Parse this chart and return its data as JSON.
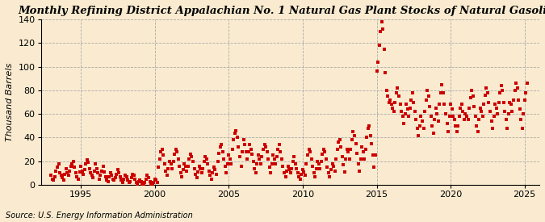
{
  "title": "Monthly Refining District Appalachian No. 1 Natural Gas Plant Stocks of Natural Gasoline",
  "ylabel": "Thousand Barrels",
  "source": "Source: U.S. Energy Information Administration",
  "xlim": [
    1992.3,
    2026.0
  ],
  "ylim": [
    0,
    140
  ],
  "yticks": [
    0,
    20,
    40,
    60,
    80,
    100,
    120,
    140
  ],
  "xticks": [
    1995,
    2000,
    2005,
    2010,
    2015,
    2020,
    2025
  ],
  "marker_color": "#cc0000",
  "marker": "s",
  "marker_size": 6,
  "background_color": "#faebd0",
  "grid_color": "#aaaaaa",
  "title_fontsize": 9.5,
  "label_fontsize": 8,
  "tick_fontsize": 8,
  "source_fontsize": 7,
  "data_x": [
    1993.0,
    1993.083,
    1993.167,
    1993.25,
    1993.333,
    1993.417,
    1993.5,
    1993.583,
    1993.667,
    1993.75,
    1993.833,
    1993.917,
    1994.0,
    1994.083,
    1994.167,
    1994.25,
    1994.333,
    1994.417,
    1994.5,
    1994.583,
    1994.667,
    1994.75,
    1994.833,
    1994.917,
    1995.0,
    1995.083,
    1995.167,
    1995.25,
    1995.333,
    1995.417,
    1995.5,
    1995.583,
    1995.667,
    1995.75,
    1995.833,
    1995.917,
    1996.0,
    1996.083,
    1996.167,
    1996.25,
    1996.333,
    1996.417,
    1996.5,
    1996.583,
    1996.667,
    1996.75,
    1996.833,
    1996.917,
    1997.0,
    1997.083,
    1997.167,
    1997.25,
    1997.333,
    1997.417,
    1997.5,
    1997.583,
    1997.667,
    1997.75,
    1997.833,
    1997.917,
    1998.0,
    1998.083,
    1998.167,
    1998.25,
    1998.333,
    1998.417,
    1998.5,
    1998.583,
    1998.667,
    1998.75,
    1998.833,
    1998.917,
    1999.0,
    1999.083,
    1999.167,
    1999.25,
    1999.333,
    1999.417,
    1999.5,
    1999.583,
    1999.667,
    1999.75,
    1999.833,
    1999.917,
    2000.0,
    2000.083,
    2000.167,
    2000.25,
    2000.333,
    2000.417,
    2000.5,
    2000.583,
    2000.667,
    2000.75,
    2000.833,
    2000.917,
    2001.0,
    2001.083,
    2001.167,
    2001.25,
    2001.333,
    2001.417,
    2001.5,
    2001.583,
    2001.667,
    2001.75,
    2001.833,
    2001.917,
    2002.0,
    2002.083,
    2002.167,
    2002.25,
    2002.333,
    2002.417,
    2002.5,
    2002.583,
    2002.667,
    2002.75,
    2002.833,
    2002.917,
    2003.0,
    2003.083,
    2003.167,
    2003.25,
    2003.333,
    2003.417,
    2003.5,
    2003.583,
    2003.667,
    2003.75,
    2003.833,
    2003.917,
    2004.0,
    2004.083,
    2004.167,
    2004.25,
    2004.333,
    2004.417,
    2004.5,
    2004.583,
    2004.667,
    2004.75,
    2004.833,
    2004.917,
    2005.0,
    2005.083,
    2005.167,
    2005.25,
    2005.333,
    2005.417,
    2005.5,
    2005.583,
    2005.667,
    2005.75,
    2005.833,
    2005.917,
    2006.0,
    2006.083,
    2006.167,
    2006.25,
    2006.333,
    2006.417,
    2006.5,
    2006.583,
    2006.667,
    2006.75,
    2006.833,
    2006.917,
    2007.0,
    2007.083,
    2007.167,
    2007.25,
    2007.333,
    2007.417,
    2007.5,
    2007.583,
    2007.667,
    2007.75,
    2007.833,
    2007.917,
    2008.0,
    2008.083,
    2008.167,
    2008.25,
    2008.333,
    2008.417,
    2008.5,
    2008.583,
    2008.667,
    2008.75,
    2008.833,
    2008.917,
    2009.0,
    2009.083,
    2009.167,
    2009.25,
    2009.333,
    2009.417,
    2009.5,
    2009.583,
    2009.667,
    2009.75,
    2009.833,
    2009.917,
    2010.0,
    2010.083,
    2010.167,
    2010.25,
    2010.333,
    2010.417,
    2010.5,
    2010.583,
    2010.667,
    2010.75,
    2010.833,
    2010.917,
    2011.0,
    2011.083,
    2011.167,
    2011.25,
    2011.333,
    2011.417,
    2011.5,
    2011.583,
    2011.667,
    2011.75,
    2011.833,
    2011.917,
    2012.0,
    2012.083,
    2012.167,
    2012.25,
    2012.333,
    2012.417,
    2012.5,
    2012.583,
    2012.667,
    2012.75,
    2012.833,
    2012.917,
    2013.0,
    2013.083,
    2013.167,
    2013.25,
    2013.333,
    2013.417,
    2013.5,
    2013.583,
    2013.667,
    2013.75,
    2013.833,
    2013.917,
    2014.0,
    2014.083,
    2014.167,
    2014.25,
    2014.333,
    2014.417,
    2014.5,
    2014.583,
    2014.667,
    2014.75,
    2014.833,
    2014.917,
    2015.0,
    2015.083,
    2015.167,
    2015.25,
    2015.333,
    2015.417,
    2015.5,
    2015.583,
    2015.667,
    2015.75,
    2015.833,
    2015.917,
    2016.0,
    2016.083,
    2016.167,
    2016.25,
    2016.333,
    2016.417,
    2016.5,
    2016.583,
    2016.667,
    2016.75,
    2016.833,
    2016.917,
    2017.0,
    2017.083,
    2017.167,
    2017.25,
    2017.333,
    2017.417,
    2017.5,
    2017.583,
    2017.667,
    2017.75,
    2017.833,
    2017.917,
    2018.0,
    2018.083,
    2018.167,
    2018.25,
    2018.333,
    2018.417,
    2018.5,
    2018.583,
    2018.667,
    2018.75,
    2018.833,
    2018.917,
    2019.0,
    2019.083,
    2019.167,
    2019.25,
    2019.333,
    2019.417,
    2019.5,
    2019.583,
    2019.667,
    2019.75,
    2019.833,
    2019.917,
    2020.0,
    2020.083,
    2020.167,
    2020.25,
    2020.333,
    2020.417,
    2020.5,
    2020.583,
    2020.667,
    2020.75,
    2020.833,
    2020.917,
    2021.0,
    2021.083,
    2021.167,
    2021.25,
    2021.333,
    2021.417,
    2021.5,
    2021.583,
    2021.667,
    2021.75,
    2021.833,
    2021.917,
    2022.0,
    2022.083,
    2022.167,
    2022.25,
    2022.333,
    2022.417,
    2022.5,
    2022.583,
    2022.667,
    2022.75,
    2022.833,
    2022.917,
    2023.0,
    2023.083,
    2023.167,
    2023.25,
    2023.333,
    2023.417,
    2023.5,
    2023.583,
    2023.667,
    2023.75,
    2023.833,
    2023.917,
    2024.0,
    2024.083,
    2024.167,
    2024.25,
    2024.333,
    2024.417,
    2024.5,
    2024.583,
    2024.667,
    2024.75,
    2024.833,
    2024.917,
    2025.0,
    2025.083,
    2025.167
  ],
  "data_y": [
    8,
    5,
    4,
    7,
    12,
    15,
    18,
    10,
    8,
    6,
    4,
    9,
    14,
    10,
    8,
    12,
    16,
    18,
    20,
    15,
    10,
    7,
    5,
    11,
    16,
    12,
    9,
    13,
    18,
    21,
    19,
    14,
    10,
    8,
    6,
    12,
    18,
    14,
    10,
    5,
    8,
    12,
    16,
    11,
    7,
    4,
    3,
    7,
    10,
    8,
    5,
    4,
    6,
    9,
    13,
    10,
    7,
    4,
    2,
    5,
    8,
    7,
    4,
    2,
    3,
    6,
    9,
    8,
    5,
    2,
    1,
    3,
    4,
    3,
    1,
    1,
    2,
    5,
    8,
    6,
    3,
    1,
    0,
    2,
    5,
    4,
    2,
    15,
    22,
    28,
    30,
    25,
    18,
    12,
    8,
    14,
    20,
    18,
    14,
    20,
    26,
    30,
    28,
    22,
    16,
    10,
    7,
    13,
    18,
    16,
    12,
    16,
    22,
    26,
    24,
    20,
    14,
    9,
    6,
    11,
    16,
    14,
    10,
    14,
    20,
    24,
    22,
    18,
    12,
    8,
    5,
    10,
    15,
    13,
    9,
    20,
    27,
    32,
    34,
    28,
    22,
    16,
    10,
    18,
    25,
    22,
    18,
    30,
    38,
    44,
    46,
    40,
    32,
    24,
    16,
    28,
    38,
    34,
    28,
    22,
    28,
    34,
    30,
    26,
    20,
    14,
    10,
    18,
    25,
    22,
    18,
    24,
    30,
    34,
    32,
    28,
    22,
    15,
    10,
    18,
    25,
    22,
    18,
    24,
    30,
    34,
    28,
    22,
    16,
    10,
    7,
    12,
    16,
    13,
    10,
    14,
    20,
    24,
    18,
    14,
    10,
    7,
    5,
    9,
    13,
    11,
    8,
    18,
    25,
    30,
    28,
    22,
    16,
    10,
    7,
    14,
    20,
    18,
    14,
    20,
    26,
    30,
    28,
    22,
    15,
    10,
    7,
    13,
    18,
    16,
    12,
    22,
    30,
    36,
    38,
    32,
    24,
    17,
    11,
    22,
    30,
    28,
    22,
    30,
    38,
    45,
    42,
    35,
    27,
    18,
    12,
    22,
    32,
    28,
    22,
    30,
    40,
    48,
    50,
    42,
    35,
    25,
    15,
    25,
    96,
    104,
    118,
    130,
    138,
    132,
    115,
    95,
    80,
    75,
    70,
    72,
    68,
    65,
    62,
    70,
    78,
    82,
    75,
    68,
    62,
    58,
    52,
    60,
    68,
    64,
    58,
    65,
    72,
    78,
    70,
    62,
    55,
    48,
    42,
    50,
    58,
    54,
    48,
    62,
    72,
    80,
    75,
    66,
    58,
    50,
    44,
    55,
    65,
    60,
    54,
    68,
    78,
    85,
    78,
    68,
    60,
    52,
    45,
    58,
    68,
    64,
    58,
    55,
    50,
    45,
    50,
    58,
    65,
    68,
    62,
    55,
    60,
    58,
    55,
    65,
    74,
    80,
    75,
    66,
    58,
    50,
    45,
    55,
    65,
    62,
    58,
    68,
    76,
    82,
    78,
    70,
    62,
    54,
    48,
    58,
    68,
    65,
    60,
    70,
    78,
    84,
    80,
    70,
    62,
    55,
    48,
    60,
    70,
    68,
    62,
    72,
    80,
    86,
    82,
    72,
    64,
    55,
    48,
    60,
    72,
    78,
    86
  ]
}
